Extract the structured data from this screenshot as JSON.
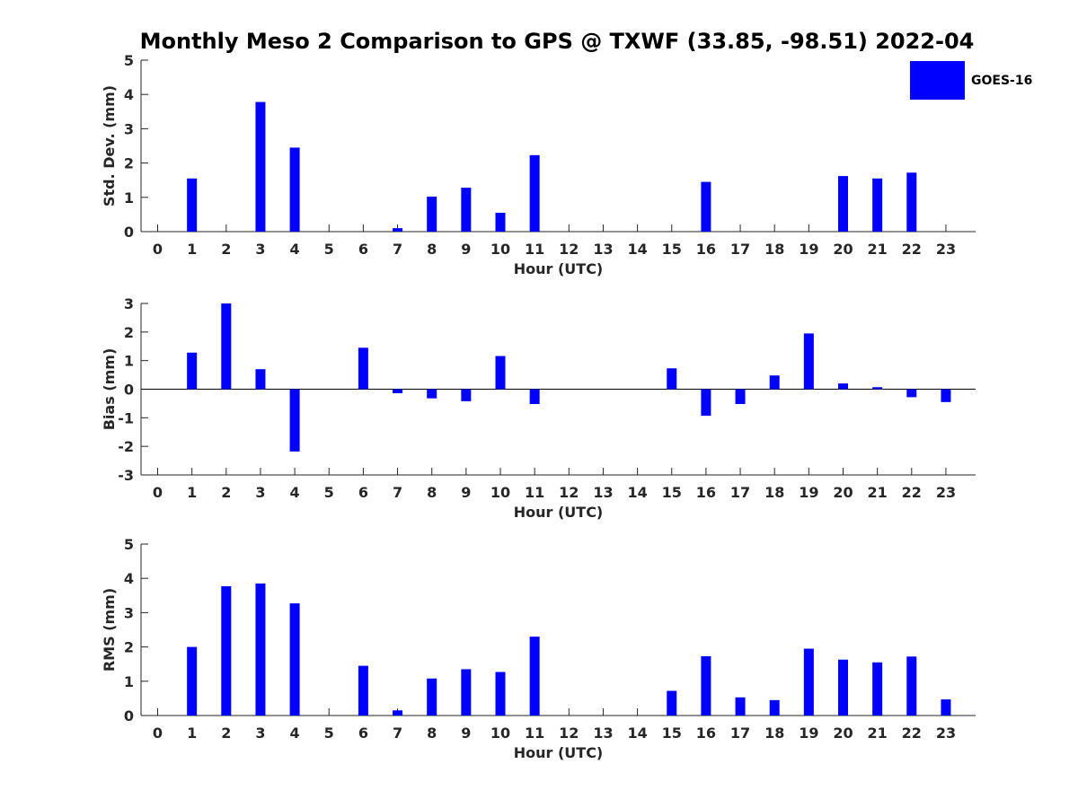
{
  "chart_data": {
    "type": "bar",
    "title": "Monthly Meso 2 Comparison to GPS @ TXWF (33.85, -98.51) 2022-04",
    "legend": {
      "entries": [
        "GOES-16"
      ],
      "placement": "top-right"
    },
    "bar_color": "#0000ff",
    "categories": [
      "0",
      "1",
      "2",
      "3",
      "4",
      "5",
      "6",
      "7",
      "8",
      "9",
      "10",
      "11",
      "12",
      "13",
      "14",
      "15",
      "16",
      "17",
      "18",
      "19",
      "20",
      "21",
      "22",
      "23"
    ],
    "panels": [
      {
        "ylabel": "Std. Dev. (mm)",
        "xlabel": "Hour (UTC)",
        "ylim": [
          0,
          5
        ],
        "yticks": [
          "0",
          "1",
          "2",
          "3",
          "4",
          "5"
        ],
        "series": [
          {
            "name": "GOES-16",
            "values": [
              0,
              1.55,
              0,
              3.78,
              2.45,
              0,
              0,
              0.1,
              1.02,
              1.28,
              0.55,
              2.23,
              0,
              0,
              0,
              0,
              1.45,
              0,
              0,
              0,
              1.62,
              1.55,
              1.72,
              0
            ]
          }
        ]
      },
      {
        "ylabel": "Bias (mm)",
        "xlabel": "Hour (UTC)",
        "ylim": [
          -3,
          3
        ],
        "yticks": [
          "-3",
          "-2",
          "-1",
          "0",
          "1",
          "2",
          "3"
        ],
        "series": [
          {
            "name": "GOES-16",
            "values": [
              0,
              1.28,
              3.0,
              0.7,
              -2.18,
              0,
              1.45,
              -0.14,
              -0.32,
              -0.42,
              1.16,
              -0.52,
              0,
              0,
              0,
              0.73,
              -0.93,
              -0.52,
              0.48,
              1.95,
              0.2,
              0.07,
              -0.28,
              -0.45
            ]
          }
        ]
      },
      {
        "ylabel": "RMS (mm)",
        "xlabel": "Hour (UTC)",
        "ylim": [
          0,
          5
        ],
        "yticks": [
          "0",
          "1",
          "2",
          "3",
          "4",
          "5"
        ],
        "series": [
          {
            "name": "GOES-16",
            "values": [
              0,
              2.0,
              3.77,
              3.85,
              3.27,
              0,
              1.45,
              0.15,
              1.08,
              1.35,
              1.27,
              2.3,
              0,
              0,
              0,
              0.72,
              1.73,
              0.53,
              0.45,
              1.95,
              1.63,
              1.55,
              1.72,
              0.47
            ]
          }
        ]
      }
    ]
  }
}
